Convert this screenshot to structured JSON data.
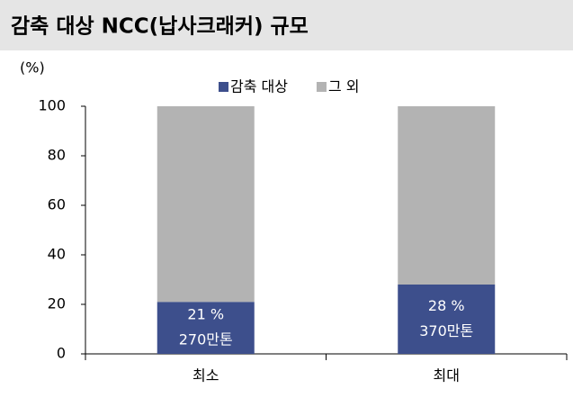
{
  "chart_data": {
    "type": "stacked-bar",
    "title": "감축 대상 NCC(납사크래커) 규모",
    "y_unit": "(%)",
    "categories": [
      "최소",
      "최대"
    ],
    "series": [
      {
        "name": "감축 대상",
        "color": "#3d4f8c",
        "values": [
          21,
          28
        ],
        "value_labels": [
          "21 %",
          "28 %"
        ],
        "annotations": [
          "270만톤",
          "370만톤"
        ]
      },
      {
        "name": "그 외",
        "color": "#b3b3b3",
        "values": [
          79,
          72
        ]
      }
    ],
    "ylim": [
      0,
      100
    ],
    "yticks": [
      0,
      20,
      40,
      60,
      80,
      100
    ],
    "grid": false
  }
}
